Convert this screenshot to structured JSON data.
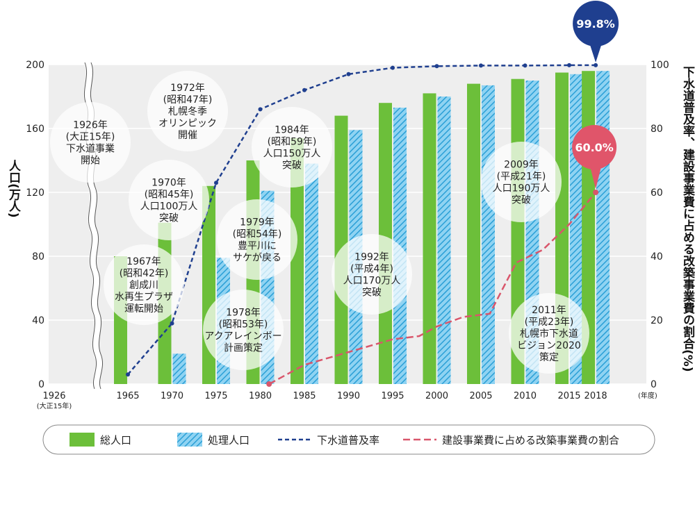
{
  "chart_data": {
    "type": "bar",
    "ylabel_left": "人口(万人)",
    "ylabel_right": "下水道普及率、建設事業費に占める改築事業費の割合(%)",
    "left_ticks": [
      "0",
      "40",
      "80",
      "120",
      "160",
      "200"
    ],
    "right_ticks": [
      "0",
      "20",
      "40",
      "60",
      "80",
      "100"
    ],
    "ylim_left": [
      0,
      200
    ],
    "ylim_right": [
      0,
      100
    ],
    "axis_start_label": "1926",
    "axis_start_sub": "(大正15年)",
    "year_unit": "(年度)",
    "categories": [
      "1965",
      "1970",
      "1975",
      "1980",
      "1985",
      "1990",
      "1995",
      "2000",
      "2005",
      "2010",
      "2015",
      "2018"
    ],
    "series": [
      {
        "name": "総人口",
        "kind": "bar",
        "color": "#6cbf3a",
        "values": [
          80,
          101,
          124,
          140,
          154,
          168,
          176,
          182,
          188,
          191,
          195,
          196
        ]
      },
      {
        "name": "処理人口",
        "kind": "bar-hatched",
        "color": "#39a9dc",
        "values": [
          null,
          19,
          79,
          121,
          138,
          159,
          173,
          180,
          187,
          190,
          194,
          196
        ]
      },
      {
        "name": "下水道普及率",
        "kind": "line-dashed",
        "color": "#1f3f8f",
        "values": [
          3,
          19,
          63,
          86,
          92,
          97,
          99,
          99.5,
          99.7,
          99.7,
          99.8,
          99.8
        ]
      },
      {
        "name": "建設事業費に占める改築事業費の割合",
        "kind": "line-dashed",
        "color": "#d9566b",
        "x": [
          1981,
          1985,
          1990,
          1995,
          1998,
          2000,
          2003,
          2006,
          2009,
          2012,
          2015,
          2018
        ],
        "values": [
          0,
          6,
          10,
          14,
          15,
          18,
          21,
          22,
          38,
          42,
          50,
          60
        ]
      }
    ],
    "highlights": [
      {
        "label": "99.8%",
        "series": "下水道普及率",
        "color": "#1f3f8f"
      },
      {
        "label": "60.0%",
        "series": "建設事業費に占める改築事業費の割合",
        "color": "#e0556a"
      }
    ],
    "annotations": [
      {
        "lines": [
          "1926年",
          "(大正15年)",
          "下水道事業",
          "開始"
        ]
      },
      {
        "lines": [
          "1972年",
          "(昭和47年)",
          "札幌冬季",
          "オリンピック",
          "開催"
        ]
      },
      {
        "lines": [
          "1970年",
          "(昭和45年)",
          "人口100万人",
          "突破"
        ]
      },
      {
        "lines": [
          "1967年",
          "(昭和42年)",
          "創成川",
          "水再生プラザ",
          "運転開始"
        ]
      },
      {
        "lines": [
          "1984年",
          "(昭和59年)",
          "人口150万人",
          "突破"
        ]
      },
      {
        "lines": [
          "1979年",
          "(昭和54年)",
          "豊平川に",
          "サケが戻る"
        ]
      },
      {
        "lines": [
          "1978年",
          "(昭和53年)",
          "アクアレインボー",
          "計画策定"
        ]
      },
      {
        "lines": [
          "1992年",
          "(平成4年)",
          "人口170万人",
          "突破"
        ]
      },
      {
        "lines": [
          "2009年",
          "(平成21年)",
          "人口190万人",
          "突破"
        ]
      },
      {
        "lines": [
          "2011年",
          "(平成23年)",
          "札幌市下水道",
          "ビジョン2020",
          "策定"
        ]
      }
    ],
    "legend_position": "bottom"
  }
}
